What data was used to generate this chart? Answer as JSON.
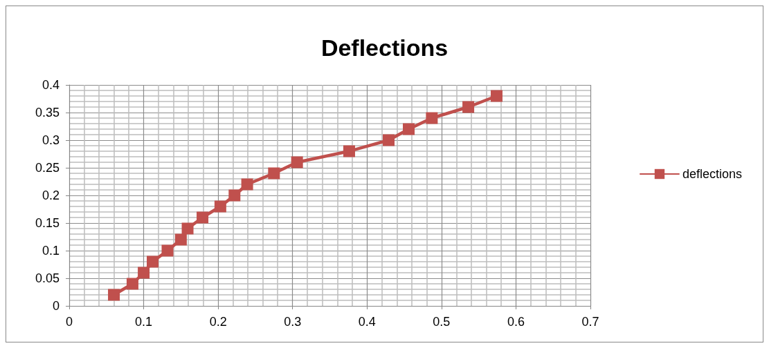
{
  "chart_data": {
    "type": "line",
    "title": "Deflections",
    "x": [
      0.06,
      0.085,
      0.1,
      0.112,
      0.132,
      0.15,
      0.159,
      0.179,
      0.203,
      0.222,
      0.239,
      0.275,
      0.306,
      0.376,
      0.429,
      0.456,
      0.487,
      0.536,
      0.574
    ],
    "series": [
      {
        "name": "deflections",
        "color": "#c0504d",
        "values": [
          0.02,
          0.04,
          0.06,
          0.08,
          0.1,
          0.12,
          0.14,
          0.16,
          0.18,
          0.2,
          0.22,
          0.24,
          0.26,
          0.28,
          0.3,
          0.32,
          0.34,
          0.36,
          0.38
        ]
      }
    ],
    "xlim": [
      0,
      0.7
    ],
    "xticks": [
      0,
      0.1,
      0.2,
      0.3,
      0.4,
      0.5,
      0.6,
      0.7
    ],
    "ylim": [
      0,
      0.4
    ],
    "yticks": [
      0,
      0.05,
      0.1,
      0.15,
      0.2,
      0.25,
      0.3,
      0.35,
      0.4
    ],
    "grid": true,
    "legend": "right",
    "marker": "square",
    "line_style": "solid"
  }
}
